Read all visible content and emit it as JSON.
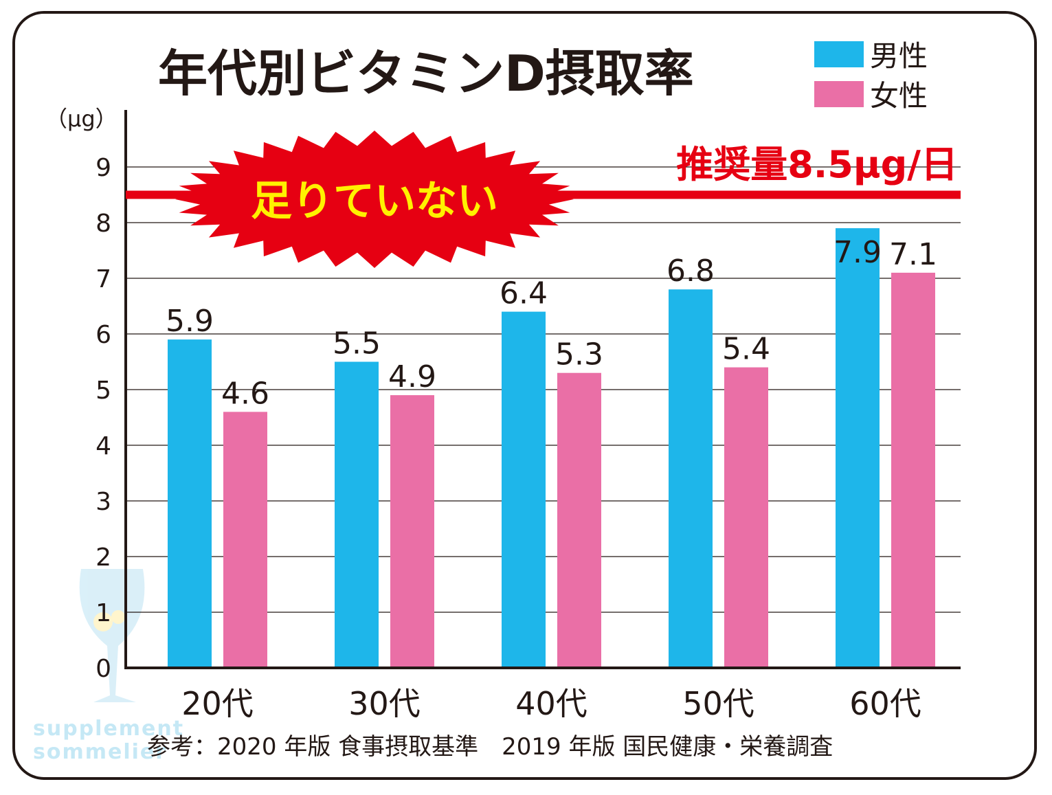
{
  "chart_data": {
    "type": "bar",
    "title": "年代別ビタミンD摂取率",
    "ylabel": "（μg）",
    "categories": [
      "20代",
      "30代",
      "40代",
      "50代",
      "60代"
    ],
    "series": [
      {
        "name": "男性",
        "color": "#1eb6ea",
        "values": [
          5.9,
          5.5,
          6.4,
          6.8,
          7.9
        ]
      },
      {
        "name": "女性",
        "color": "#ea6fa6",
        "values": [
          4.6,
          4.9,
          5.3,
          5.4,
          7.1
        ]
      }
    ],
    "data_labels": {
      "男性": [
        "5.9",
        "5.5",
        "6.4",
        "6.8",
        "7.9"
      ],
      "女性": [
        "4.6",
        "4.9",
        "5.3",
        "5.4",
        "7.1"
      ]
    },
    "yticks": [
      "0",
      "1",
      "2",
      "3",
      "4",
      "5",
      "6",
      "7",
      "8",
      "9"
    ],
    "ylim": [
      0,
      10
    ],
    "grid": true,
    "legend_position": "top-right",
    "reference_line": {
      "value": 8.5,
      "label": "推奨量8.5μg/日",
      "color": "#e60012"
    },
    "callout": {
      "text": "足りていない",
      "fill": "#e60012",
      "text_color": "#fff100"
    }
  },
  "source_note": "参考：2020 年版 食事摂取基準　2019 年版 国民健康・栄養調査",
  "watermark": {
    "line1": "supplement",
    "line2": "sommelier",
    "icon": "wine-glass-icon"
  }
}
